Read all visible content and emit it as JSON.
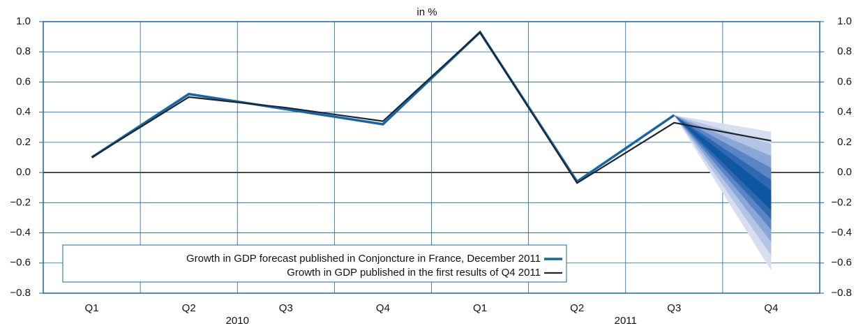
{
  "chart_data": {
    "type": "line",
    "title": "in %",
    "categories": [
      "Q1",
      "Q2",
      "Q3",
      "Q4",
      "Q1",
      "Q2",
      "Q3",
      "Q4"
    ],
    "year_labels": [
      "2010",
      "2011"
    ],
    "series": [
      {
        "name": "Growth in GDP forecast published in Conjoncture in France, December 2011",
        "color": "#1666a6",
        "values": [
          0.1,
          0.52,
          0.42,
          0.32,
          0.93,
          -0.06,
          0.38,
          null
        ]
      },
      {
        "name": "Growth in GDP published in the first results of Q4 2011",
        "color": "#1c2530",
        "values": [
          0.1,
          0.5,
          0.43,
          0.34,
          0.93,
          -0.07,
          0.33,
          0.21
        ]
      }
    ],
    "fan": [
      {
        "low": -0.65,
        "high": 0.27,
        "color": "#d7def0"
      },
      {
        "low": -0.55,
        "high": 0.19,
        "color": "#b4c4e4"
      },
      {
        "low": -0.46,
        "high": 0.11,
        "color": "#8aa6d6"
      },
      {
        "low": -0.38,
        "high": 0.03,
        "color": "#5a85c4"
      },
      {
        "low": -0.31,
        "high": -0.05,
        "color": "#2f68b0"
      },
      {
        "low": -0.25,
        "high": -0.12,
        "color": "#0f57a0"
      }
    ],
    "ylim": [
      -0.8,
      1.0
    ],
    "yticks": [
      {
        "value": 1.0,
        "label": "1.0"
      },
      {
        "value": 0.8,
        "label": "0.8"
      },
      {
        "value": 0.6,
        "label": "0.6"
      },
      {
        "value": 0.4,
        "label": "0.4"
      },
      {
        "value": 0.2,
        "label": "0.2"
      },
      {
        "value": 0,
        "label": "0.0"
      },
      {
        "value": -0.2,
        "label": "−0.2"
      },
      {
        "value": -0.4,
        "label": "−0.4"
      },
      {
        "value": -0.6,
        "label": "−0.6"
      },
      {
        "value": -0.8,
        "label": "−0.8"
      }
    ],
    "grid": true,
    "grid_color": "#1666a6",
    "legend_position": "lower left"
  }
}
